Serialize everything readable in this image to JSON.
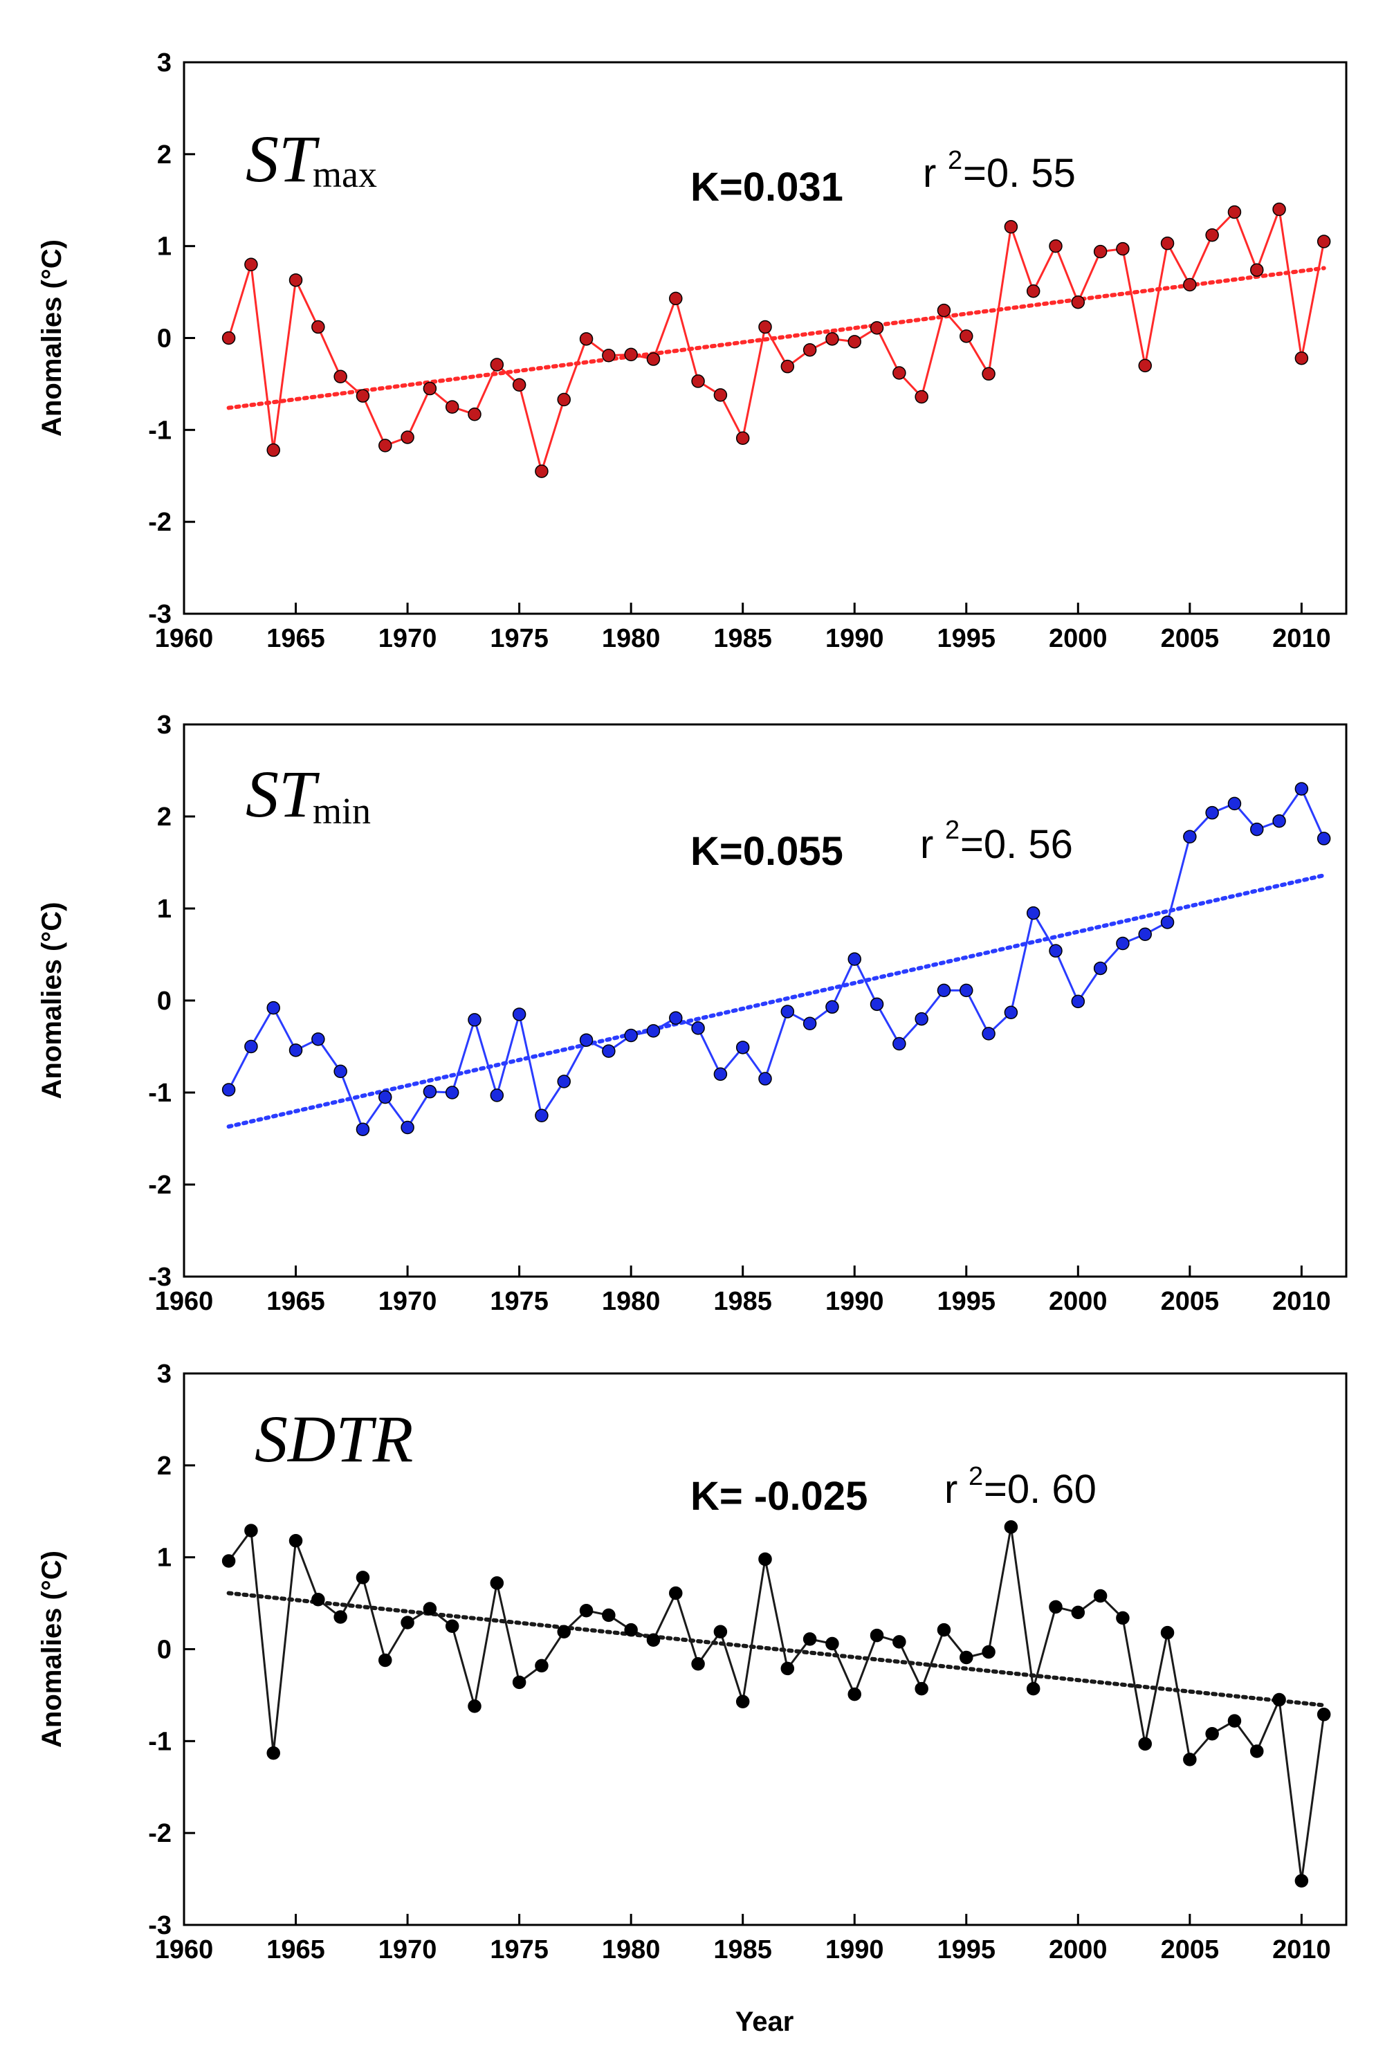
{
  "chart_data": [
    {
      "type": "line",
      "panel_label": "ST",
      "panel_label_sub": "max",
      "ylabel": "Anomalies (°C)",
      "xlabel": "",
      "xlim": [
        1960,
        2012
      ],
      "ylim": [
        -3,
        3
      ],
      "x_ticks": [
        1960,
        1965,
        1970,
        1975,
        1980,
        1985,
        1990,
        1995,
        2000,
        2005,
        2010
      ],
      "y_ticks": [
        -3,
        -2,
        -1,
        0,
        1,
        2,
        3
      ],
      "stat_k": "K=0.031",
      "stat_r_prefix": "r",
      "stat_r_sup": "2",
      "stat_r_value": "=0. 55",
      "color": "#ff2a2a",
      "marker_color": "#c0181c",
      "x": [
        1962,
        1963,
        1964,
        1965,
        1966,
        1967,
        1968,
        1969,
        1970,
        1971,
        1972,
        1973,
        1974,
        1975,
        1976,
        1977,
        1978,
        1979,
        1980,
        1981,
        1982,
        1983,
        1984,
        1985,
        1986,
        1987,
        1988,
        1989,
        1990,
        1991,
        1992,
        1993,
        1994,
        1995,
        1996,
        1997,
        1998,
        1999,
        2000,
        2001,
        2002,
        2003,
        2004,
        2005,
        2006,
        2007,
        2008,
        2009,
        2010,
        2011
      ],
      "values": [
        0.0,
        0.8,
        -1.22,
        0.63,
        0.12,
        -0.42,
        -0.63,
        -1.17,
        -1.08,
        -0.55,
        -0.75,
        -0.83,
        -0.29,
        -0.51,
        -1.45,
        -0.67,
        -0.01,
        -0.19,
        -0.18,
        -0.23,
        0.43,
        -0.47,
        -0.62,
        -1.09,
        0.12,
        -0.31,
        -0.13,
        -0.01,
        -0.04,
        0.11,
        -0.38,
        -0.64,
        0.3,
        0.02,
        -0.39,
        1.21,
        0.51,
        1.0,
        0.39,
        0.94,
        0.97,
        -0.3,
        1.03,
        0.58,
        1.12,
        1.37,
        0.74,
        1.4,
        -0.22,
        1.05
      ],
      "trend": {
        "x": [
          1962,
          2011
        ],
        "y": [
          -0.76,
          0.76
        ]
      }
    },
    {
      "type": "line",
      "panel_label": "ST",
      "panel_label_sub": "min",
      "ylabel": "Anomalies (°C)",
      "xlabel": "",
      "xlim": [
        1960,
        2012
      ],
      "ylim": [
        -3,
        3
      ],
      "x_ticks": [
        1960,
        1965,
        1970,
        1975,
        1980,
        1985,
        1990,
        1995,
        2000,
        2005,
        2010
      ],
      "y_ticks": [
        -3,
        -2,
        -1,
        0,
        1,
        2,
        3
      ],
      "stat_k": "K=0.055",
      "stat_r_prefix": "r",
      "stat_r_sup": "2",
      "stat_r_value": "=0. 56",
      "color": "#2a3cff",
      "marker_color": "#1a2ae0",
      "x": [
        1962,
        1963,
        1964,
        1965,
        1966,
        1967,
        1968,
        1969,
        1970,
        1971,
        1972,
        1973,
        1974,
        1975,
        1976,
        1977,
        1978,
        1979,
        1980,
        1981,
        1982,
        1983,
        1984,
        1985,
        1986,
        1987,
        1988,
        1989,
        1990,
        1991,
        1992,
        1993,
        1994,
        1995,
        1996,
        1997,
        1998,
        1999,
        2000,
        2001,
        2002,
        2003,
        2004,
        2005,
        2006,
        2007,
        2008,
        2009,
        2010,
        2011
      ],
      "values": [
        -0.97,
        -0.5,
        -0.08,
        -0.54,
        -0.42,
        -0.77,
        -1.4,
        -1.05,
        -1.38,
        -0.99,
        -1.0,
        -0.21,
        -1.03,
        -0.15,
        -1.25,
        -0.88,
        -0.43,
        -0.55,
        -0.38,
        -0.33,
        -0.19,
        -0.3,
        -0.8,
        -0.51,
        -0.85,
        -0.12,
        -0.25,
        -0.07,
        0.45,
        -0.04,
        -0.47,
        -0.2,
        0.11,
        0.11,
        -0.36,
        -0.13,
        0.95,
        0.54,
        -0.01,
        0.35,
        0.62,
        0.72,
        0.85,
        1.78,
        2.04,
        2.14,
        1.86,
        1.95,
        2.3,
        1.76
      ],
      "trend": {
        "x": [
          1962,
          2011
        ],
        "y": [
          -1.37,
          1.36
        ]
      }
    },
    {
      "type": "line",
      "panel_label": "SDTR",
      "panel_label_sub": "",
      "ylabel": "Anomalies (°C)",
      "xlabel": "Year",
      "xlim": [
        1960,
        2012
      ],
      "ylim": [
        -3,
        3
      ],
      "x_ticks": [
        1960,
        1965,
        1970,
        1975,
        1980,
        1985,
        1990,
        1995,
        2000,
        2005,
        2010
      ],
      "y_ticks": [
        -3,
        -2,
        -1,
        0,
        1,
        2,
        3
      ],
      "stat_k": "K= -0.025",
      "stat_r_prefix": "r",
      "stat_r_sup": "2",
      "stat_r_value": "=0. 60",
      "color": "#1a1a1a",
      "marker_color": "#000000",
      "x": [
        1962,
        1963,
        1964,
        1965,
        1966,
        1967,
        1968,
        1969,
        1970,
        1971,
        1972,
        1973,
        1974,
        1975,
        1976,
        1977,
        1978,
        1979,
        1980,
        1981,
        1982,
        1983,
        1984,
        1985,
        1986,
        1987,
        1988,
        1989,
        1990,
        1991,
        1992,
        1993,
        1994,
        1995,
        1996,
        1997,
        1998,
        1999,
        2000,
        2001,
        2002,
        2003,
        2004,
        2005,
        2006,
        2007,
        2008,
        2009,
        2010,
        2011
      ],
      "values": [
        0.96,
        1.29,
        -1.13,
        1.18,
        0.54,
        0.35,
        0.78,
        -0.12,
        0.29,
        0.44,
        0.25,
        -0.62,
        0.72,
        -0.36,
        -0.18,
        0.19,
        0.42,
        0.37,
        0.21,
        0.1,
        0.61,
        -0.16,
        0.19,
        -0.57,
        0.98,
        -0.21,
        0.11,
        0.06,
        -0.49,
        0.15,
        0.08,
        -0.43,
        0.21,
        -0.09,
        -0.03,
        1.33,
        -0.43,
        0.46,
        0.4,
        0.58,
        0.34,
        -1.03,
        0.18,
        -1.2,
        -0.92,
        -0.78,
        -1.11,
        -0.55,
        -2.52,
        -0.71
      ],
      "trend": {
        "x": [
          1962,
          2011
        ],
        "y": [
          0.61,
          -0.61
        ]
      }
    }
  ]
}
